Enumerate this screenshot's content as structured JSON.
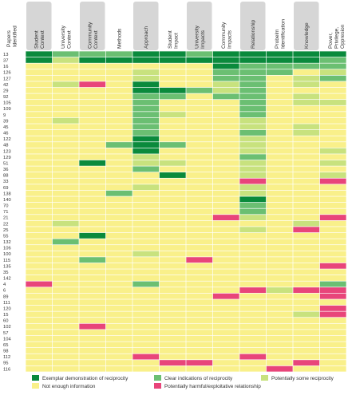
{
  "chart_data": {
    "type": "heatmap",
    "corner_label": "Papers Identified",
    "columns": [
      "Student Context",
      "University Context",
      "Community Context",
      "Methods",
      "Approach",
      "Student Impact",
      "University Impacts",
      "Community Impacts",
      "Relationship",
      "Probelm Identification",
      "Knowledge",
      "Power, Privilege, Oppresion"
    ],
    "column_shading": [
      true,
      false,
      true,
      false,
      true,
      false,
      true,
      false,
      true,
      false,
      true,
      false
    ],
    "rows": [
      "13",
      "37",
      "16",
      "126",
      "127",
      "42",
      "29",
      "92",
      "105",
      "109",
      "9",
      "39",
      "45",
      "46",
      "122",
      "48",
      "123",
      "129",
      "51",
      "36",
      "88",
      "33",
      "69",
      "138",
      "140",
      "70",
      "71",
      "21",
      "22",
      "25",
      "55",
      "132",
      "106",
      "100",
      "115",
      "135",
      "35",
      "142",
      "4",
      "6",
      "89",
      "111",
      "120",
      "15",
      "60",
      "102",
      "57",
      "104",
      "65",
      "98",
      "112",
      "95",
      "116"
    ],
    "levels": [
      {
        "code": "E",
        "label": "Exemplar demonstration of reciprocity",
        "color": "#0a8a3c"
      },
      {
        "code": "C",
        "label": "Clear indications of reciprocity",
        "color": "#6bbf72"
      },
      {
        "code": "P",
        "label": "Potentially some reciprocity",
        "color": "#c8e27e"
      },
      {
        "code": "N",
        "label": "Not enough information",
        "color": "#f9f08a"
      },
      {
        "code": "H",
        "label": "Potentially harmful/exploitative relationship",
        "color": "#e8457a"
      }
    ],
    "legend_order": [
      "E",
      "C",
      "P",
      "N",
      "H"
    ],
    "cells": [
      "ECCCEECEEEEE",
      "EPEEEEEEEEEC",
      "NNNNNNNECCCC",
      "NNNNPNNCCCNP",
      "NNNNPNNCCNPC",
      "NPHNENNPCNPN",
      "NNNNEECPCNNN",
      "NNNNCCNCCNPN",
      "NNNNCNNNCNPP",
      "NNNNCNNNCNNN",
      "NNNNCPNNCNNN",
      "NPNNCNNNPNNN",
      "NNNNCNNNPNPN",
      "NNNNCNNNCNPN",
      "NNNNENNNPNNN",
      "NNNCECNNPNNN",
      "NNNNENNNPNNP",
      "NNNNPNNNCNNN",
      "NNENPPNNPNNP",
      "NNNNCNNNPNNN",
      "NNNNNENNPNNP",
      "NNNNNNNNHNNH",
      "NNNNPNNNPNNN",
      "NNNCNNNNPNNN",
      "NNNNNNNNENNN",
      "NNNNNNNNCNNN",
      "NNNNNNNNCNNN",
      "NNNNNNNHPNNH",
      "NPNNNNNNNNPN",
      "NNNNNNNNPNHN",
      "NNENNNNNNNNN",
      "NCNNNNNNNNNN",
      "NNNNNNNNNNNN",
      "NNNNPNNNNNNN",
      "NNCNNNHNNNNN",
      "NNNNNNNNNNNH",
      "NNNNNNNNNNNN",
      "NNNNNNNNNNNN",
      "HNNNCNNNNNNC",
      "NNNNNNNNHPHH",
      "NNNNNNNHNNNH",
      "NNNNNNNNNNNN",
      "NNNNNNNNNNNH",
      "NNNNNNNNNNPH",
      "NNNNNNNNNNNN",
      "NNHNNNNNNNNN",
      "NNNNNNNNNNNN",
      "NNNNNNNNNNNN",
      "NNNNNNNNNNNN",
      "NNNNNNNNNNNN",
      "NNNNHNNNHNNN",
      "NNNNNHHNNNHN",
      "NNNNNNNNNHNN"
    ]
  }
}
